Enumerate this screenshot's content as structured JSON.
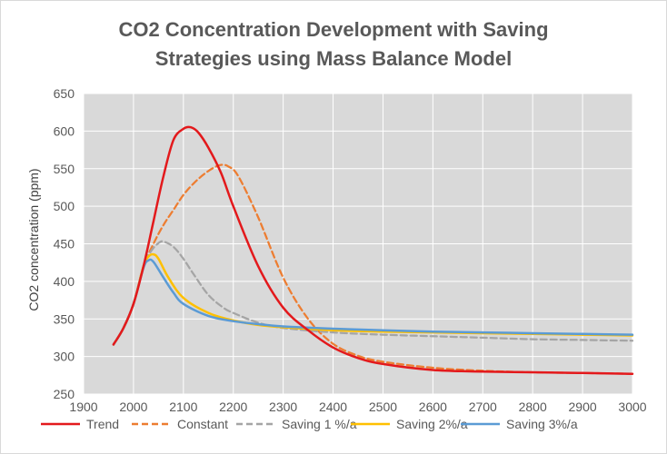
{
  "chart_data": {
    "type": "line",
    "title_lines": [
      "CO2 Concentration Development with Saving",
      "Strategies using Mass Balance Model"
    ],
    "xlabel": "",
    "ylabel": "CO2 concentration (ppm)",
    "xlim": [
      1900,
      3000
    ],
    "ylim": [
      250,
      650
    ],
    "x_ticks": [
      1900,
      2000,
      2100,
      2200,
      2300,
      2400,
      2500,
      2600,
      2700,
      2800,
      2900,
      3000
    ],
    "y_ticks": [
      250,
      300,
      350,
      400,
      450,
      500,
      550,
      600,
      650
    ],
    "grid": true,
    "legend_position": "bottom",
    "series": [
      {
        "name": "Trend",
        "color": "#e3191c",
        "dash": "solid",
        "x": [
          1960,
          1980,
          2000,
          2020,
          2040,
          2060,
          2080,
          2100,
          2115,
          2130,
          2150,
          2175,
          2200,
          2250,
          2300,
          2350,
          2400,
          2450,
          2500,
          2600,
          2700,
          2800,
          2900,
          3000
        ],
        "y": [
          316,
          338,
          370,
          420,
          480,
          540,
          588,
          603,
          605,
          598,
          578,
          545,
          500,
          420,
          365,
          335,
          312,
          298,
          290,
          282,
          280,
          279,
          278,
          277
        ]
      },
      {
        "name": "Constant",
        "color": "#ed7d31",
        "dash": "dashed",
        "x": [
          1960,
          1980,
          2000,
          2020,
          2040,
          2060,
          2080,
          2100,
          2120,
          2140,
          2160,
          2175,
          2190,
          2210,
          2250,
          2300,
          2350,
          2400,
          2450,
          2500,
          2600,
          2700,
          2800,
          2900,
          3000
        ],
        "y": [
          316,
          338,
          370,
          420,
          450,
          475,
          495,
          515,
          530,
          542,
          551,
          555,
          553,
          540,
          485,
          405,
          350,
          317,
          301,
          293,
          285,
          281,
          279,
          278,
          277
        ]
      },
      {
        "name": "Saving 1 %/a",
        "color": "#a5a5a5",
        "dash": "dashed",
        "x": [
          1960,
          1980,
          2000,
          2020,
          2035,
          2050,
          2060,
          2080,
          2100,
          2120,
          2150,
          2180,
          2200,
          2250,
          2300,
          2400,
          2500,
          2600,
          2700,
          2800,
          2900,
          3000
        ],
        "y": [
          316,
          338,
          370,
          420,
          440,
          451,
          453,
          446,
          430,
          410,
          382,
          365,
          358,
          345,
          338,
          332,
          329,
          327,
          325,
          323,
          322,
          321
        ]
      },
      {
        "name": "Saving 2%/a",
        "color": "#ffc000",
        "dash": "solid",
        "x": [
          1960,
          1980,
          2000,
          2020,
          2030,
          2040,
          2050,
          2070,
          2100,
          2150,
          2200,
          2250,
          2300,
          2400,
          2500,
          2600,
          2700,
          2800,
          2900,
          3000
        ],
        "y": [
          316,
          338,
          370,
          420,
          433,
          436,
          430,
          405,
          378,
          358,
          348,
          342,
          339,
          335,
          333,
          332,
          331,
          330,
          329,
          328
        ]
      },
      {
        "name": "Saving 3%/a",
        "color": "#5b9bd5",
        "dash": "solid",
        "x": [
          1960,
          1980,
          2000,
          2020,
          2030,
          2040,
          2060,
          2080,
          2100,
          2150,
          2200,
          2250,
          2300,
          2400,
          2500,
          2600,
          2700,
          2800,
          2900,
          3000
        ],
        "y": [
          316,
          338,
          370,
          418,
          428,
          426,
          405,
          385,
          370,
          354,
          347,
          343,
          340,
          337,
          335,
          333,
          332,
          331,
          330,
          329
        ]
      }
    ]
  }
}
